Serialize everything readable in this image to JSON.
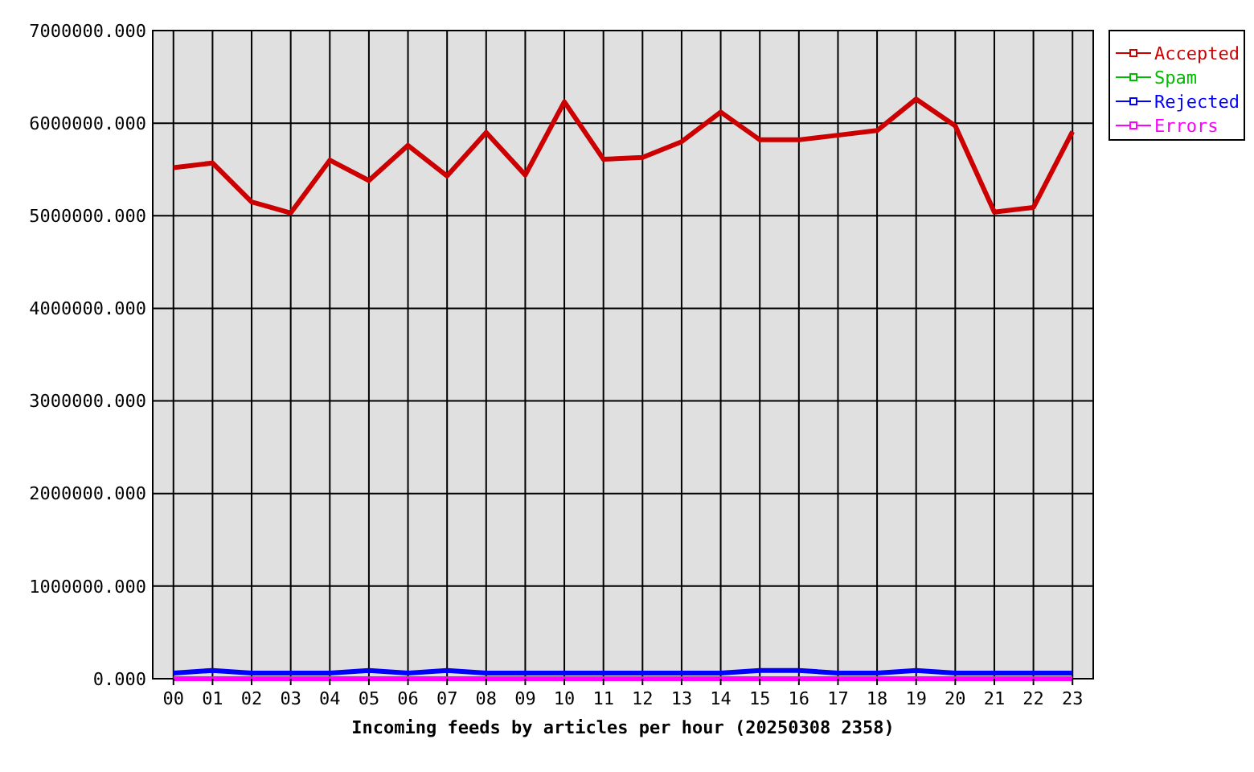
{
  "chart_data": {
    "type": "line",
    "xlabel": "Incoming feeds by articles per hour (20250308 2358)",
    "categories": [
      "00",
      "01",
      "02",
      "03",
      "04",
      "05",
      "06",
      "07",
      "08",
      "09",
      "10",
      "11",
      "12",
      "13",
      "14",
      "15",
      "16",
      "17",
      "18",
      "19",
      "20",
      "21",
      "22",
      "23"
    ],
    "series": [
      {
        "name": "Accepted",
        "color": "#cc0000",
        "values": [
          5520000,
          5570000,
          5150000,
          5030000,
          5600000,
          5380000,
          5760000,
          5430000,
          5900000,
          5440000,
          6230000,
          5610000,
          5630000,
          5800000,
          6120000,
          5820000,
          5820000,
          5870000,
          5920000,
          6260000,
          5970000,
          5040000,
          5090000,
          5910000
        ]
      },
      {
        "name": "Spam",
        "color": "#00bb00",
        "values": [
          null,
          null,
          null,
          null,
          null,
          null,
          null,
          null,
          null,
          null,
          null,
          null,
          null,
          null,
          null,
          null,
          null,
          null,
          null,
          null,
          null,
          null,
          null,
          null
        ]
      },
      {
        "name": "Rejected",
        "color": "#0000ff",
        "values": [
          60000,
          90000,
          60000,
          60000,
          60000,
          90000,
          60000,
          90000,
          60000,
          60000,
          60000,
          60000,
          60000,
          60000,
          60000,
          90000,
          90000,
          60000,
          60000,
          90000,
          60000,
          60000,
          60000,
          60000
        ]
      },
      {
        "name": "Errors",
        "color": "#ff00ff",
        "values": [
          0,
          0,
          0,
          0,
          0,
          0,
          0,
          0,
          0,
          0,
          0,
          0,
          0,
          0,
          0,
          0,
          0,
          0,
          0,
          0,
          0,
          0,
          0,
          0
        ]
      }
    ],
    "ylim": [
      0,
      7000000
    ],
    "yticks": [
      {
        "value": 0,
        "label": "0.000"
      },
      {
        "value": 1000000,
        "label": "1000000.000"
      },
      {
        "value": 2000000,
        "label": "2000000.000"
      },
      {
        "value": 3000000,
        "label": "3000000.000"
      },
      {
        "value": 4000000,
        "label": "4000000.000"
      },
      {
        "value": 5000000,
        "label": "5000000.000"
      },
      {
        "value": 6000000,
        "label": "6000000.000"
      },
      {
        "value": 7000000,
        "label": "7000000.000"
      }
    ],
    "grid": true,
    "legend": "top right",
    "marker": "none",
    "line_style": "solid"
  }
}
